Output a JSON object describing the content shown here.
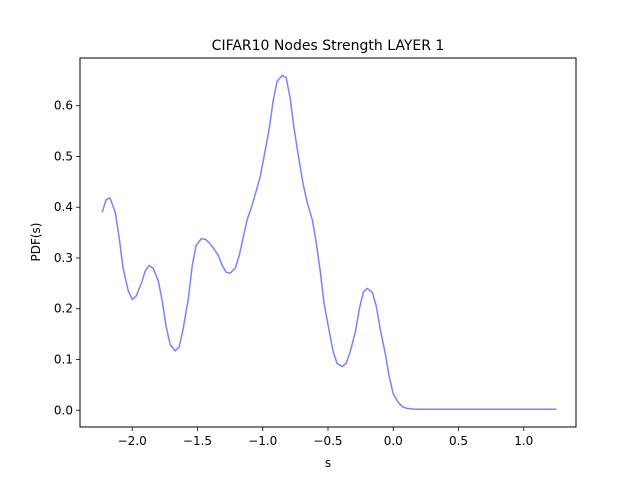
{
  "chart_data": {
    "type": "line",
    "title": "CIFAR10 Nodes Strength LAYER 1",
    "xlabel": "s",
    "ylabel": "PDF(s)",
    "xlim": [
      -2.4,
      1.4
    ],
    "ylim": [
      -0.033,
      0.694
    ],
    "grid": false,
    "line_color": "#7f7fff",
    "x_ticks": [
      -2.0,
      -1.5,
      -1.0,
      -0.5,
      0.0,
      0.5,
      1.0
    ],
    "x_tick_labels": [
      "−2.0",
      "−1.5",
      "−1.0",
      "−0.5",
      "0.0",
      "0.5",
      "1.0"
    ],
    "y_ticks": [
      0.0,
      0.1,
      0.2,
      0.3,
      0.4,
      0.5,
      0.6
    ],
    "y_tick_labels": [
      "0.0",
      "0.1",
      "0.2",
      "0.3",
      "0.4",
      "0.5",
      "0.6"
    ],
    "series": [
      {
        "x": [
          -2.23,
          -2.2,
          -2.17,
          -2.13,
          -2.1,
          -2.07,
          -2.03,
          -2.0,
          -1.97,
          -1.93,
          -1.9,
          -1.87,
          -1.84,
          -1.8,
          -1.77,
          -1.74,
          -1.71,
          -1.67,
          -1.64,
          -1.61,
          -1.57,
          -1.54,
          -1.51,
          -1.47,
          -1.44,
          -1.41,
          -1.38,
          -1.34,
          -1.31,
          -1.28,
          -1.25,
          -1.21,
          -1.18,
          -1.15,
          -1.12,
          -1.08,
          -1.05,
          -1.02,
          -0.99,
          -0.95,
          -0.92,
          -0.89,
          -0.85,
          -0.82,
          -0.79,
          -0.76,
          -0.72,
          -0.69,
          -0.66,
          -0.62,
          -0.59,
          -0.56,
          -0.53,
          -0.49,
          -0.46,
          -0.43,
          -0.39,
          -0.36,
          -0.33,
          -0.29,
          -0.26,
          -0.23,
          -0.2,
          -0.16,
          -0.13,
          -0.1,
          -0.06,
          -0.03,
          0.0,
          0.04,
          0.07,
          0.1,
          0.13,
          0.17,
          0.2,
          0.23,
          0.27,
          0.3,
          0.33,
          0.36,
          0.4,
          0.43,
          0.46,
          0.5,
          0.53,
          0.56,
          0.59,
          0.63,
          0.66,
          0.69,
          0.72,
          0.76,
          0.79,
          0.82,
          0.86,
          0.89,
          0.92,
          0.95,
          0.99,
          1.02,
          1.05,
          1.08,
          1.12,
          1.15,
          1.18,
          1.22,
          1.25
        ],
        "y": [
          0.39,
          0.415,
          0.418,
          0.39,
          0.34,
          0.28,
          0.235,
          0.218,
          0.225,
          0.25,
          0.275,
          0.285,
          0.28,
          0.255,
          0.215,
          0.165,
          0.13,
          0.117,
          0.125,
          0.16,
          0.22,
          0.285,
          0.325,
          0.338,
          0.337,
          0.33,
          0.32,
          0.305,
          0.285,
          0.272,
          0.27,
          0.28,
          0.305,
          0.34,
          0.375,
          0.405,
          0.432,
          0.46,
          0.5,
          0.555,
          0.61,
          0.648,
          0.66,
          0.655,
          0.615,
          0.555,
          0.49,
          0.445,
          0.41,
          0.375,
          0.33,
          0.275,
          0.21,
          0.155,
          0.115,
          0.092,
          0.086,
          0.093,
          0.115,
          0.155,
          0.2,
          0.232,
          0.24,
          0.232,
          0.205,
          0.16,
          0.11,
          0.065,
          0.032,
          0.015,
          0.007,
          0.004,
          0.003,
          0.002,
          0.002,
          0.002,
          0.002,
          0.002,
          0.002,
          0.002,
          0.002,
          0.002,
          0.002,
          0.002,
          0.002,
          0.002,
          0.002,
          0.002,
          0.002,
          0.002,
          0.002,
          0.002,
          0.002,
          0.002,
          0.002,
          0.002,
          0.002,
          0.002,
          0.002,
          0.002,
          0.002,
          0.002,
          0.002,
          0.002,
          0.002,
          0.002,
          0.002
        ]
      }
    ]
  }
}
